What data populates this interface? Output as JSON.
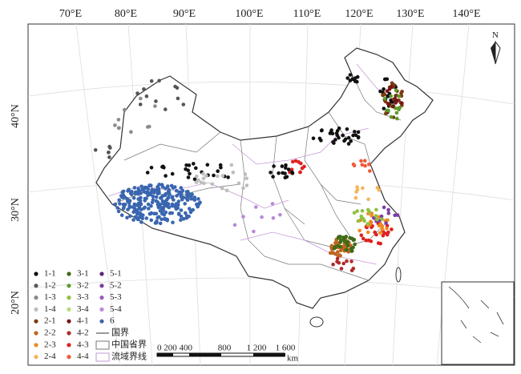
{
  "graticule": {
    "longitudes": [
      "70°E",
      "80°E",
      "90°E",
      "100°E",
      "110°E",
      "120°E",
      "130°E",
      "140°E"
    ],
    "latitudes": [
      "40°N",
      "30°N",
      "20°N"
    ]
  },
  "north": "N",
  "legend": {
    "classes": [
      {
        "label": "1-1",
        "color": "#111111"
      },
      {
        "label": "1-2",
        "color": "#555555"
      },
      {
        "label": "1-3",
        "color": "#8a8a8a"
      },
      {
        "label": "1-4",
        "color": "#bdbdbd"
      },
      {
        "label": "2-1",
        "color": "#7a3b10"
      },
      {
        "label": "2-2",
        "color": "#c0651f"
      },
      {
        "label": "2-3",
        "color": "#f08a1c"
      },
      {
        "label": "2-4",
        "color": "#f6b45a"
      },
      {
        "label": "3-1",
        "color": "#3f6b16"
      },
      {
        "label": "3-2",
        "color": "#5e9a2a"
      },
      {
        "label": "3-3",
        "color": "#8fc23e"
      },
      {
        "label": "3-4",
        "color": "#b7dc7a"
      },
      {
        "label": "4-1",
        "color": "#7c1414"
      },
      {
        "label": "4-2",
        "color": "#b02a2a"
      },
      {
        "label": "4-3",
        "color": "#e02020"
      },
      {
        "label": "4-4",
        "color": "#f05a3a"
      },
      {
        "label": "5-1",
        "color": "#5a2780"
      },
      {
        "label": "5-2",
        "color": "#7a3ea3"
      },
      {
        "label": "5-3",
        "color": "#9a5cc0"
      },
      {
        "label": "5-4",
        "color": "#b98ad6"
      },
      {
        "label": "6",
        "color": "#3a66b0"
      }
    ],
    "boundaries": [
      "国界",
      "中国省界",
      "流域界线"
    ]
  },
  "scale_bar": {
    "labels": [
      "0 200 400",
      "800",
      "1 200",
      "1 600"
    ],
    "unit": "km"
  }
}
